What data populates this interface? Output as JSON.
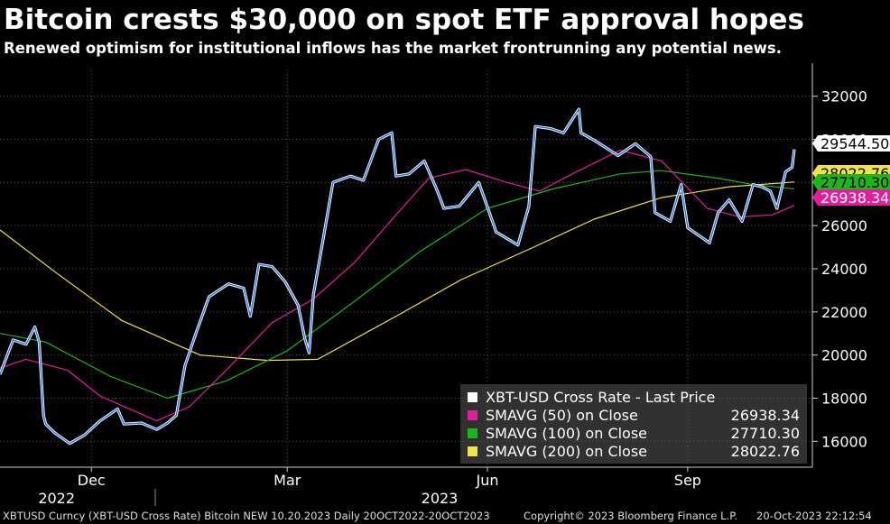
{
  "chart_data": {
    "type": "line",
    "title": "Bitcoin crests $30,000 on spot ETF approval hopes",
    "subtitle": "Renewed optimism for institutional inflows has the market frontrunning any potential news.",
    "ylim": [
      14800,
      33200
    ],
    "y_ticks": [
      "32000",
      "30000",
      "28000",
      "26000",
      "24000",
      "22000",
      "20000",
      "18000",
      "16000"
    ],
    "y_tick_values": [
      32000,
      30000,
      28000,
      26000,
      24000,
      22000,
      20000,
      18000,
      16000
    ],
    "x_tick_labels": [
      "Dec",
      "Mar",
      "Jun",
      "Sep"
    ],
    "x_tick_dates": [
      "2022-12-01",
      "2023-03-01",
      "2023-06-01",
      "2023-09-01"
    ],
    "year_labels": [
      {
        "label": "2022",
        "date": "2022-11-15"
      },
      {
        "label": "2023",
        "date": "2023-05-10"
      }
    ],
    "grid": true,
    "legend_position": "bottom-right",
    "series": [
      {
        "name": "XBT-USD Cross Rate - Last Price",
        "color": "#ffffff",
        "line_color": "#2a6fdb",
        "last_label": "29544.50",
        "points": [
          [
            "2022-10-20",
            19100
          ],
          [
            "2022-10-26",
            20700
          ],
          [
            "2022-11-01",
            20500
          ],
          [
            "2022-11-05",
            21300
          ],
          [
            "2022-11-07",
            20600
          ],
          [
            "2022-11-09",
            17200
          ],
          [
            "2022-11-10",
            16800
          ],
          [
            "2022-11-14",
            16400
          ],
          [
            "2022-11-21",
            15900
          ],
          [
            "2022-11-28",
            16300
          ],
          [
            "2022-12-05",
            16950
          ],
          [
            "2022-12-13",
            17500
          ],
          [
            "2022-12-16",
            16800
          ],
          [
            "2022-12-24",
            16850
          ],
          [
            "2022-12-31",
            16550
          ],
          [
            "2023-01-05",
            16850
          ],
          [
            "2023-01-09",
            17200
          ],
          [
            "2023-01-13",
            19500
          ],
          [
            "2023-01-18",
            21000
          ],
          [
            "2023-01-24",
            22700
          ],
          [
            "2023-02-02",
            23300
          ],
          [
            "2023-02-09",
            23100
          ],
          [
            "2023-02-12",
            21800
          ],
          [
            "2023-02-16",
            24200
          ],
          [
            "2023-02-22",
            24100
          ],
          [
            "2023-02-28",
            23400
          ],
          [
            "2023-03-06",
            22300
          ],
          [
            "2023-03-09",
            20800
          ],
          [
            "2023-03-11",
            20100
          ],
          [
            "2023-03-13",
            22800
          ],
          [
            "2023-03-16",
            24500
          ],
          [
            "2023-03-22",
            28000
          ],
          [
            "2023-03-30",
            28300
          ],
          [
            "2023-04-05",
            28100
          ],
          [
            "2023-04-12",
            30000
          ],
          [
            "2023-04-18",
            30300
          ],
          [
            "2023-04-20",
            28300
          ],
          [
            "2023-04-26",
            28400
          ],
          [
            "2023-05-03",
            29000
          ],
          [
            "2023-05-09",
            27600
          ],
          [
            "2023-05-12",
            26800
          ],
          [
            "2023-05-19",
            26900
          ],
          [
            "2023-05-28",
            28000
          ],
          [
            "2023-06-05",
            25700
          ],
          [
            "2023-06-15",
            25100
          ],
          [
            "2023-06-20",
            26900
          ],
          [
            "2023-06-23",
            30600
          ],
          [
            "2023-06-30",
            30500
          ],
          [
            "2023-07-06",
            30300
          ],
          [
            "2023-07-13",
            31400
          ],
          [
            "2023-07-14",
            30300
          ],
          [
            "2023-07-21",
            29900
          ],
          [
            "2023-07-31",
            29250
          ],
          [
            "2023-08-08",
            29800
          ],
          [
            "2023-08-15",
            29200
          ],
          [
            "2023-08-17",
            26600
          ],
          [
            "2023-08-24",
            26200
          ],
          [
            "2023-08-29",
            27900
          ],
          [
            "2023-09-01",
            25900
          ],
          [
            "2023-09-11",
            25200
          ],
          [
            "2023-09-15",
            26600
          ],
          [
            "2023-09-20",
            27200
          ],
          [
            "2023-09-26",
            26200
          ],
          [
            "2023-10-01",
            27900
          ],
          [
            "2023-10-05",
            27800
          ],
          [
            "2023-10-09",
            27600
          ],
          [
            "2023-10-12",
            26800
          ],
          [
            "2023-10-16",
            28500
          ],
          [
            "2023-10-19",
            28700
          ],
          [
            "2023-10-20",
            29544.5
          ]
        ]
      },
      {
        "name": "SMAVG (50)  on Close",
        "color": "#e0209a",
        "value": "26938.34",
        "points": [
          [
            "2022-10-20",
            19400
          ],
          [
            "2022-11-01",
            19800
          ],
          [
            "2022-11-20",
            19300
          ],
          [
            "2022-12-05",
            18100
          ],
          [
            "2022-12-31",
            16950
          ],
          [
            "2023-01-15",
            17600
          ],
          [
            "2023-02-01",
            19300
          ],
          [
            "2023-02-22",
            21500
          ],
          [
            "2023-03-13",
            22600
          ],
          [
            "2023-04-01",
            24300
          ],
          [
            "2023-04-20",
            26500
          ],
          [
            "2023-05-05",
            28200
          ],
          [
            "2023-05-22",
            28600
          ],
          [
            "2023-06-10",
            28000
          ],
          [
            "2023-06-25",
            27600
          ],
          [
            "2023-07-10",
            28400
          ],
          [
            "2023-08-01",
            29500
          ],
          [
            "2023-08-20",
            29000
          ],
          [
            "2023-09-10",
            26800
          ],
          [
            "2023-09-25",
            26400
          ],
          [
            "2023-10-10",
            26500
          ],
          [
            "2023-10-20",
            26938.34
          ]
        ]
      },
      {
        "name": "SMAVG (100)  on Close",
        "color": "#1db51d",
        "value": "27710.30",
        "points": [
          [
            "2022-10-20",
            21000
          ],
          [
            "2022-11-10",
            20600
          ],
          [
            "2022-12-10",
            19000
          ],
          [
            "2023-01-05",
            18000
          ],
          [
            "2023-02-01",
            18800
          ],
          [
            "2023-03-01",
            20200
          ],
          [
            "2023-04-01",
            22500
          ],
          [
            "2023-05-01",
            24800
          ],
          [
            "2023-06-01",
            26800
          ],
          [
            "2023-07-01",
            27700
          ],
          [
            "2023-08-01",
            28400
          ],
          [
            "2023-08-20",
            28550
          ],
          [
            "2023-09-15",
            28200
          ],
          [
            "2023-10-01",
            27900
          ],
          [
            "2023-10-20",
            27710.3
          ]
        ]
      },
      {
        "name": "SMAVG (200)  on Close",
        "color": "#f2e14a",
        "value": "28022.76",
        "points": [
          [
            "2022-10-20",
            25800
          ],
          [
            "2022-11-15",
            23800
          ],
          [
            "2022-12-15",
            21600
          ],
          [
            "2023-01-20",
            20000
          ],
          [
            "2023-02-20",
            19750
          ],
          [
            "2023-03-15",
            19800
          ],
          [
            "2023-04-20",
            21800
          ],
          [
            "2023-05-20",
            23500
          ],
          [
            "2023-06-20",
            24900
          ],
          [
            "2023-07-20",
            26300
          ],
          [
            "2023-08-20",
            27300
          ],
          [
            "2023-09-20",
            27800
          ],
          [
            "2023-10-20",
            28022.76
          ]
        ]
      }
    ],
    "right_labels": [
      {
        "text": "29544.50",
        "value": 29544.5,
        "bg": "#ffffff",
        "fg": "#000000"
      },
      {
        "text": "28022.76",
        "value": 28022.76,
        "bg": "#f2e14a",
        "fg": "#000000"
      },
      {
        "text": "27710.30",
        "value": 27710.3,
        "bg": "#1db51d",
        "fg": "#000000"
      },
      {
        "text": "26938.34",
        "value": 26938.34,
        "bg": "#e0209a",
        "fg": "#ffffff"
      }
    ]
  },
  "legend": {
    "rows": [
      {
        "label": "XBT-USD Cross Rate - Last Price",
        "value": "",
        "color": "#ffffff"
      },
      {
        "label": "SMAVG (50)  on Close",
        "value": "26938.34",
        "color": "#e0209a"
      },
      {
        "label": "SMAVG (100)  on Close",
        "value": "27710.30",
        "color": "#1db51d"
      },
      {
        "label": "SMAVG (200)  on Close",
        "value": "28022.76",
        "color": "#f2e14a"
      }
    ]
  },
  "footer": {
    "left": "XBTUSD Curncy (XBT-USD Cross Rate) Bitcoin NEW 10.20.2023  Daily 20OCT2022-20OCT2023",
    "middle": "Copyright© 2023 Bloomberg Finance L.P.",
    "right": "20-Oct-2023 22:12:54"
  }
}
